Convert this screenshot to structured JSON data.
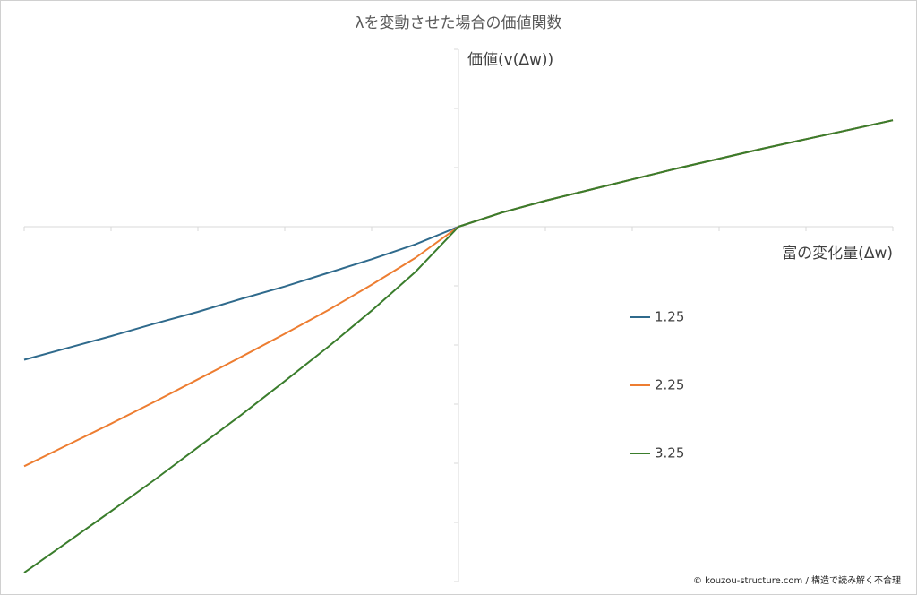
{
  "chart_data": {
    "type": "line",
    "title": "λを変動させた場合の価値関数",
    "y_label": "価値(v(Δw))",
    "x_label": "富の変化量(Δw)",
    "footer": "© kouzou-structure.com / 構造で読み解く不合理",
    "x": [
      -5,
      -4.5,
      -4,
      -3.5,
      -3,
      -2.5,
      -2,
      -1.5,
      -1,
      -0.5,
      0,
      0.5,
      1,
      1.5,
      2,
      2.5,
      3,
      3.5,
      4,
      4.5,
      5
    ],
    "series": [
      {
        "name": "1.25",
        "color": "#2f6a8c",
        "values": [
          -2.25,
          -2.05,
          -1.85,
          -1.64,
          -1.44,
          -1.22,
          -1.01,
          -0.78,
          -0.55,
          -0.3,
          0,
          0.24,
          0.44,
          0.62,
          0.8,
          0.98,
          1.15,
          1.32,
          1.48,
          1.64,
          1.8
        ]
      },
      {
        "name": "2.25",
        "color": "#ed7d31",
        "values": [
          -4.05,
          -3.69,
          -3.33,
          -2.96,
          -2.58,
          -2.2,
          -1.81,
          -1.41,
          -0.98,
          -0.53,
          0,
          0.24,
          0.44,
          0.62,
          0.8,
          0.98,
          1.15,
          1.32,
          1.48,
          1.64,
          1.8
        ]
      },
      {
        "name": "3.25",
        "color": "#3a7d2c",
        "values": [
          -5.85,
          -5.33,
          -4.81,
          -4.28,
          -3.73,
          -3.18,
          -2.61,
          -2.03,
          -1.42,
          -0.77,
          0,
          0.24,
          0.44,
          0.62,
          0.8,
          0.98,
          1.15,
          1.32,
          1.48,
          1.64,
          1.8
        ]
      }
    ],
    "xlim": [
      -5,
      5
    ],
    "xticks": [
      -5,
      -4,
      -3,
      -2,
      -1,
      0,
      1,
      2,
      3,
      4,
      5
    ],
    "ylim": [
      -6,
      3
    ],
    "yticks": [
      -6,
      -5,
      -4,
      -3,
      -2,
      -1,
      0,
      1,
      2,
      3
    ],
    "legend": "right"
  }
}
